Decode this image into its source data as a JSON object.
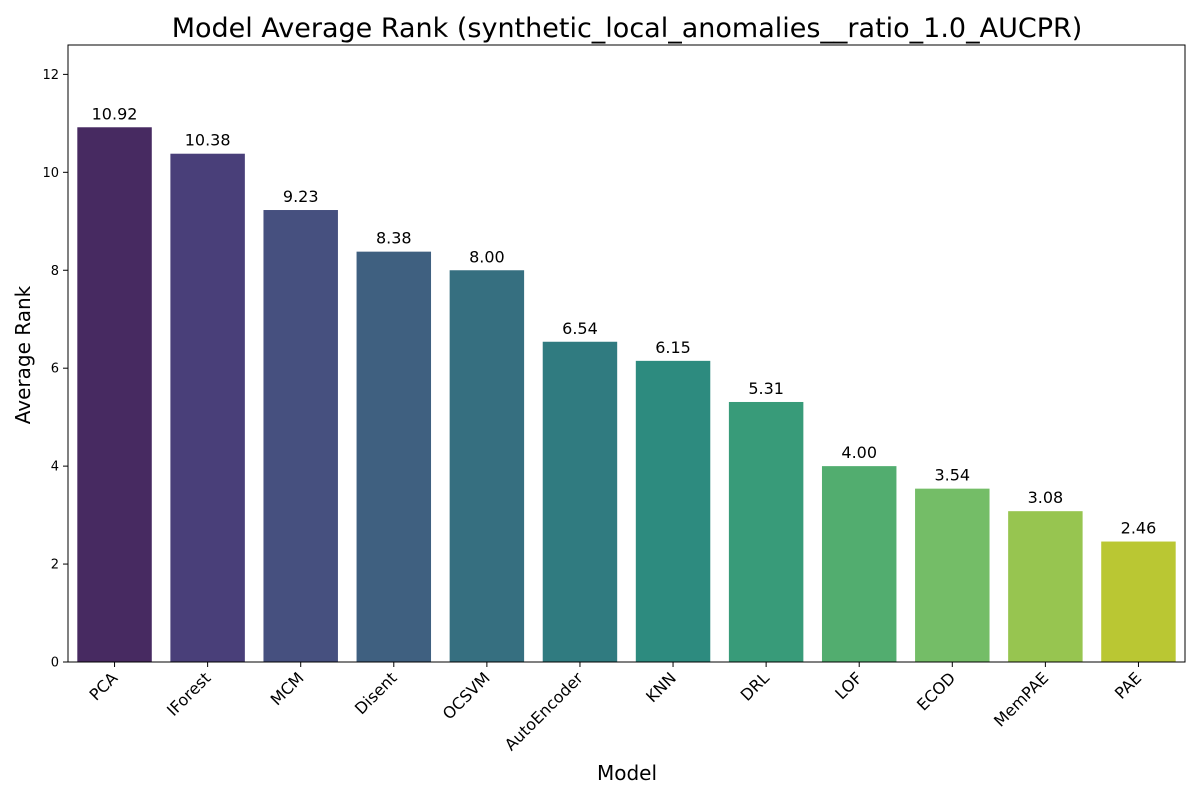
{
  "chart_data": {
    "type": "bar",
    "title": "Model Average Rank (synthetic_local_anomalies__ratio_1.0_AUCPR)",
    "xlabel": "Model",
    "ylabel": "Average Rank",
    "categories": [
      "PCA",
      "IForest",
      "MCM",
      "Disent",
      "OCSVM",
      "AutoEncoder",
      "KNN",
      "DRL",
      "LOF",
      "ECOD",
      "MemPAE",
      "PAE"
    ],
    "values": [
      10.92,
      10.38,
      9.23,
      8.38,
      8.0,
      6.54,
      6.15,
      5.31,
      4.0,
      3.54,
      3.08,
      2.46
    ],
    "value_labels": [
      "10.92",
      "10.38",
      "9.23",
      "8.38",
      "8.00",
      "6.54",
      "6.15",
      "5.31",
      "4.00",
      "3.54",
      "3.08",
      "2.46"
    ],
    "colors": [
      "#472a61",
      "#493f79",
      "#46507f",
      "#3f6080",
      "#366f80",
      "#307b80",
      "#2d8b7f",
      "#389b79",
      "#52ad6f",
      "#74bd67",
      "#97c550",
      "#bac733"
    ],
    "ylim": [
      0,
      12.6
    ],
    "yticks": [
      0,
      2,
      4,
      6,
      8,
      10,
      12
    ],
    "grid": false,
    "legend": "none"
  }
}
